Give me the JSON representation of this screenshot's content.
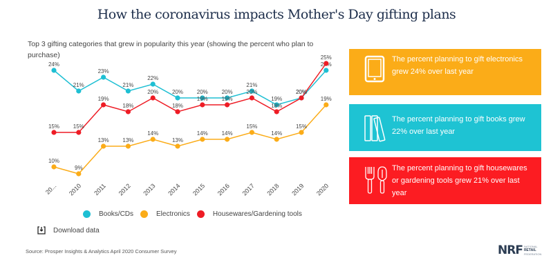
{
  "title": "How the coronavirus impacts Mother's Day gifting plans",
  "subtitle": "Top 3 gifting categories that grew in popularity this year (showing the percent who plan to purchase)",
  "legend": {
    "items": [
      {
        "label": "Books/CDs",
        "color": "#1ebfd3"
      },
      {
        "label": "Electronics",
        "color": "#fbac18"
      },
      {
        "label": "Housewares/Gardening tools",
        "color": "#ee1c25"
      }
    ]
  },
  "download": {
    "label": "Download data",
    "icon": "download-icon"
  },
  "source": "Source: Prosper Insights & Analytics April 2020 Consumer Survey",
  "cards": [
    {
      "icon": "tablet-icon",
      "text": "The percent planning to gift electronics grew 24% over last year",
      "color": "#fbac18"
    },
    {
      "icon": "books-icon",
      "text": "The percent planning to gift books grew 22% over last year",
      "color": "#1ec3d3"
    },
    {
      "icon": "garden-tools-icon",
      "text": "The percent planning to gift housewares or gardening tools grew 21% over last year",
      "color": "#fc1c22"
    }
  ],
  "logo": {
    "main": "NRF",
    "line1": "NATIONAL",
    "line2": "RETAIL",
    "line3": "FEDERATION"
  },
  "chart_data": {
    "type": "line",
    "title": "How the coronavirus impacts Mother's Day gifting plans",
    "subtitle": "Top 3 gifting categories that grew in popularity this year (showing the percent who plan to purchase)",
    "xlabel": "",
    "ylabel": "",
    "x": [
      "20...",
      "2010",
      "2011",
      "2012",
      "2013",
      "2014",
      "2015",
      "2016",
      "2017",
      "2018",
      "2019",
      "2020"
    ],
    "grid": false,
    "legend_position": "bottom",
    "unit": "%",
    "series": [
      {
        "name": "Books/CDs",
        "color": "#1ebfd3",
        "values": [
          24,
          21,
          23,
          21,
          22,
          20,
          20,
          20,
          21,
          19,
          20,
          24
        ]
      },
      {
        "name": "Electronics",
        "color": "#fbac18",
        "values": [
          10,
          9,
          13,
          13,
          14,
          13,
          14,
          14,
          15,
          14,
          15,
          19
        ]
      },
      {
        "name": "Housewares/Gardening tools",
        "color": "#ee1c25",
        "values": [
          15,
          15,
          19,
          18,
          20,
          18,
          19,
          19,
          20,
          18,
          20,
          25
        ]
      }
    ]
  }
}
